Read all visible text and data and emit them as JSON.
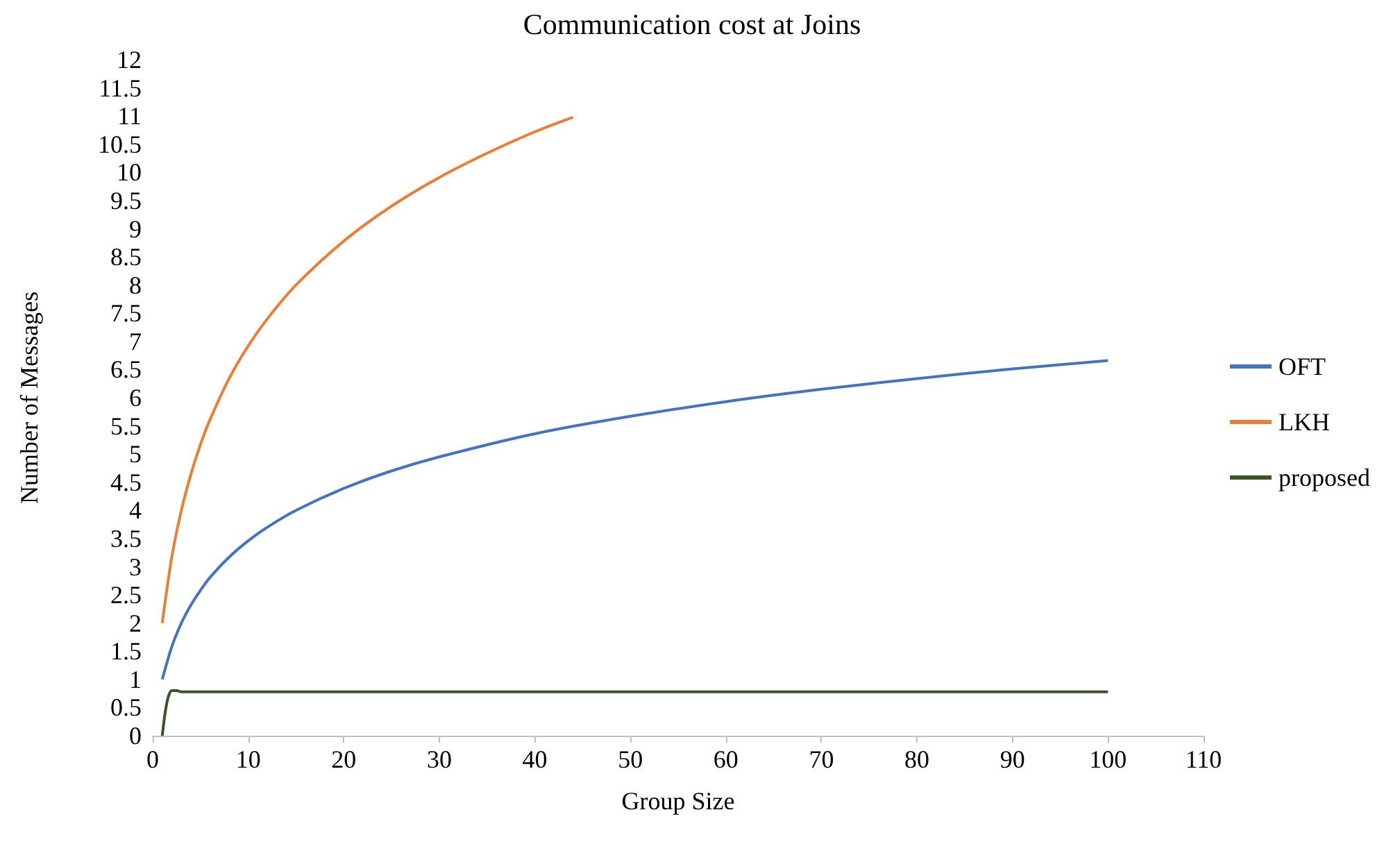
{
  "chart_data": {
    "type": "line",
    "title": "Communication cost at Joins",
    "xlabel": "Group Size",
    "ylabel": "Number of Messages",
    "series": [
      {
        "name": "OFT",
        "color": "#4472c4",
        "x": [
          1,
          2,
          3,
          4,
          5,
          6,
          8,
          10,
          12,
          15,
          20,
          25,
          30,
          40,
          50,
          60,
          70,
          80,
          90,
          100
        ],
        "values": [
          1,
          1.58,
          2,
          2.32,
          2.58,
          2.81,
          3.17,
          3.46,
          3.7,
          4,
          4.39,
          4.7,
          4.95,
          5.36,
          5.67,
          5.93,
          6.15,
          6.34,
          6.51,
          6.66
        ]
      },
      {
        "name": "LKH",
        "color": "#ed7d31",
        "x": [
          1,
          2,
          3,
          4,
          5,
          6,
          8,
          10,
          12,
          15,
          20,
          25,
          30,
          35,
          40,
          44
        ],
        "values": [
          2,
          3.17,
          4,
          4.64,
          5.17,
          5.61,
          6.34,
          6.92,
          7.4,
          8,
          8.78,
          9.4,
          9.91,
          10.34,
          10.72,
          10.98
        ]
      },
      {
        "name": "proposed",
        "color": "#375623",
        "x": [
          1,
          1.5,
          2,
          2.5,
          3,
          100
        ],
        "values": [
          0,
          0.6,
          0.8,
          0.8,
          0.78,
          0.78
        ]
      }
    ],
    "xlim": [
      0,
      110
    ],
    "xticks": [
      0,
      10,
      20,
      30,
      40,
      50,
      60,
      70,
      80,
      90,
      100,
      110
    ],
    "ylim": [
      0,
      12
    ],
    "yticks": [
      0,
      0.5,
      1,
      1.5,
      2,
      2.5,
      3,
      3.5,
      4,
      4.5,
      5,
      5.5,
      6,
      6.5,
      7,
      7.5,
      8,
      8.5,
      9,
      9.5,
      10,
      10.5,
      11,
      11.5,
      12
    ],
    "grid": false,
    "legend": "right",
    "marker": "none",
    "line_style": "solid"
  }
}
